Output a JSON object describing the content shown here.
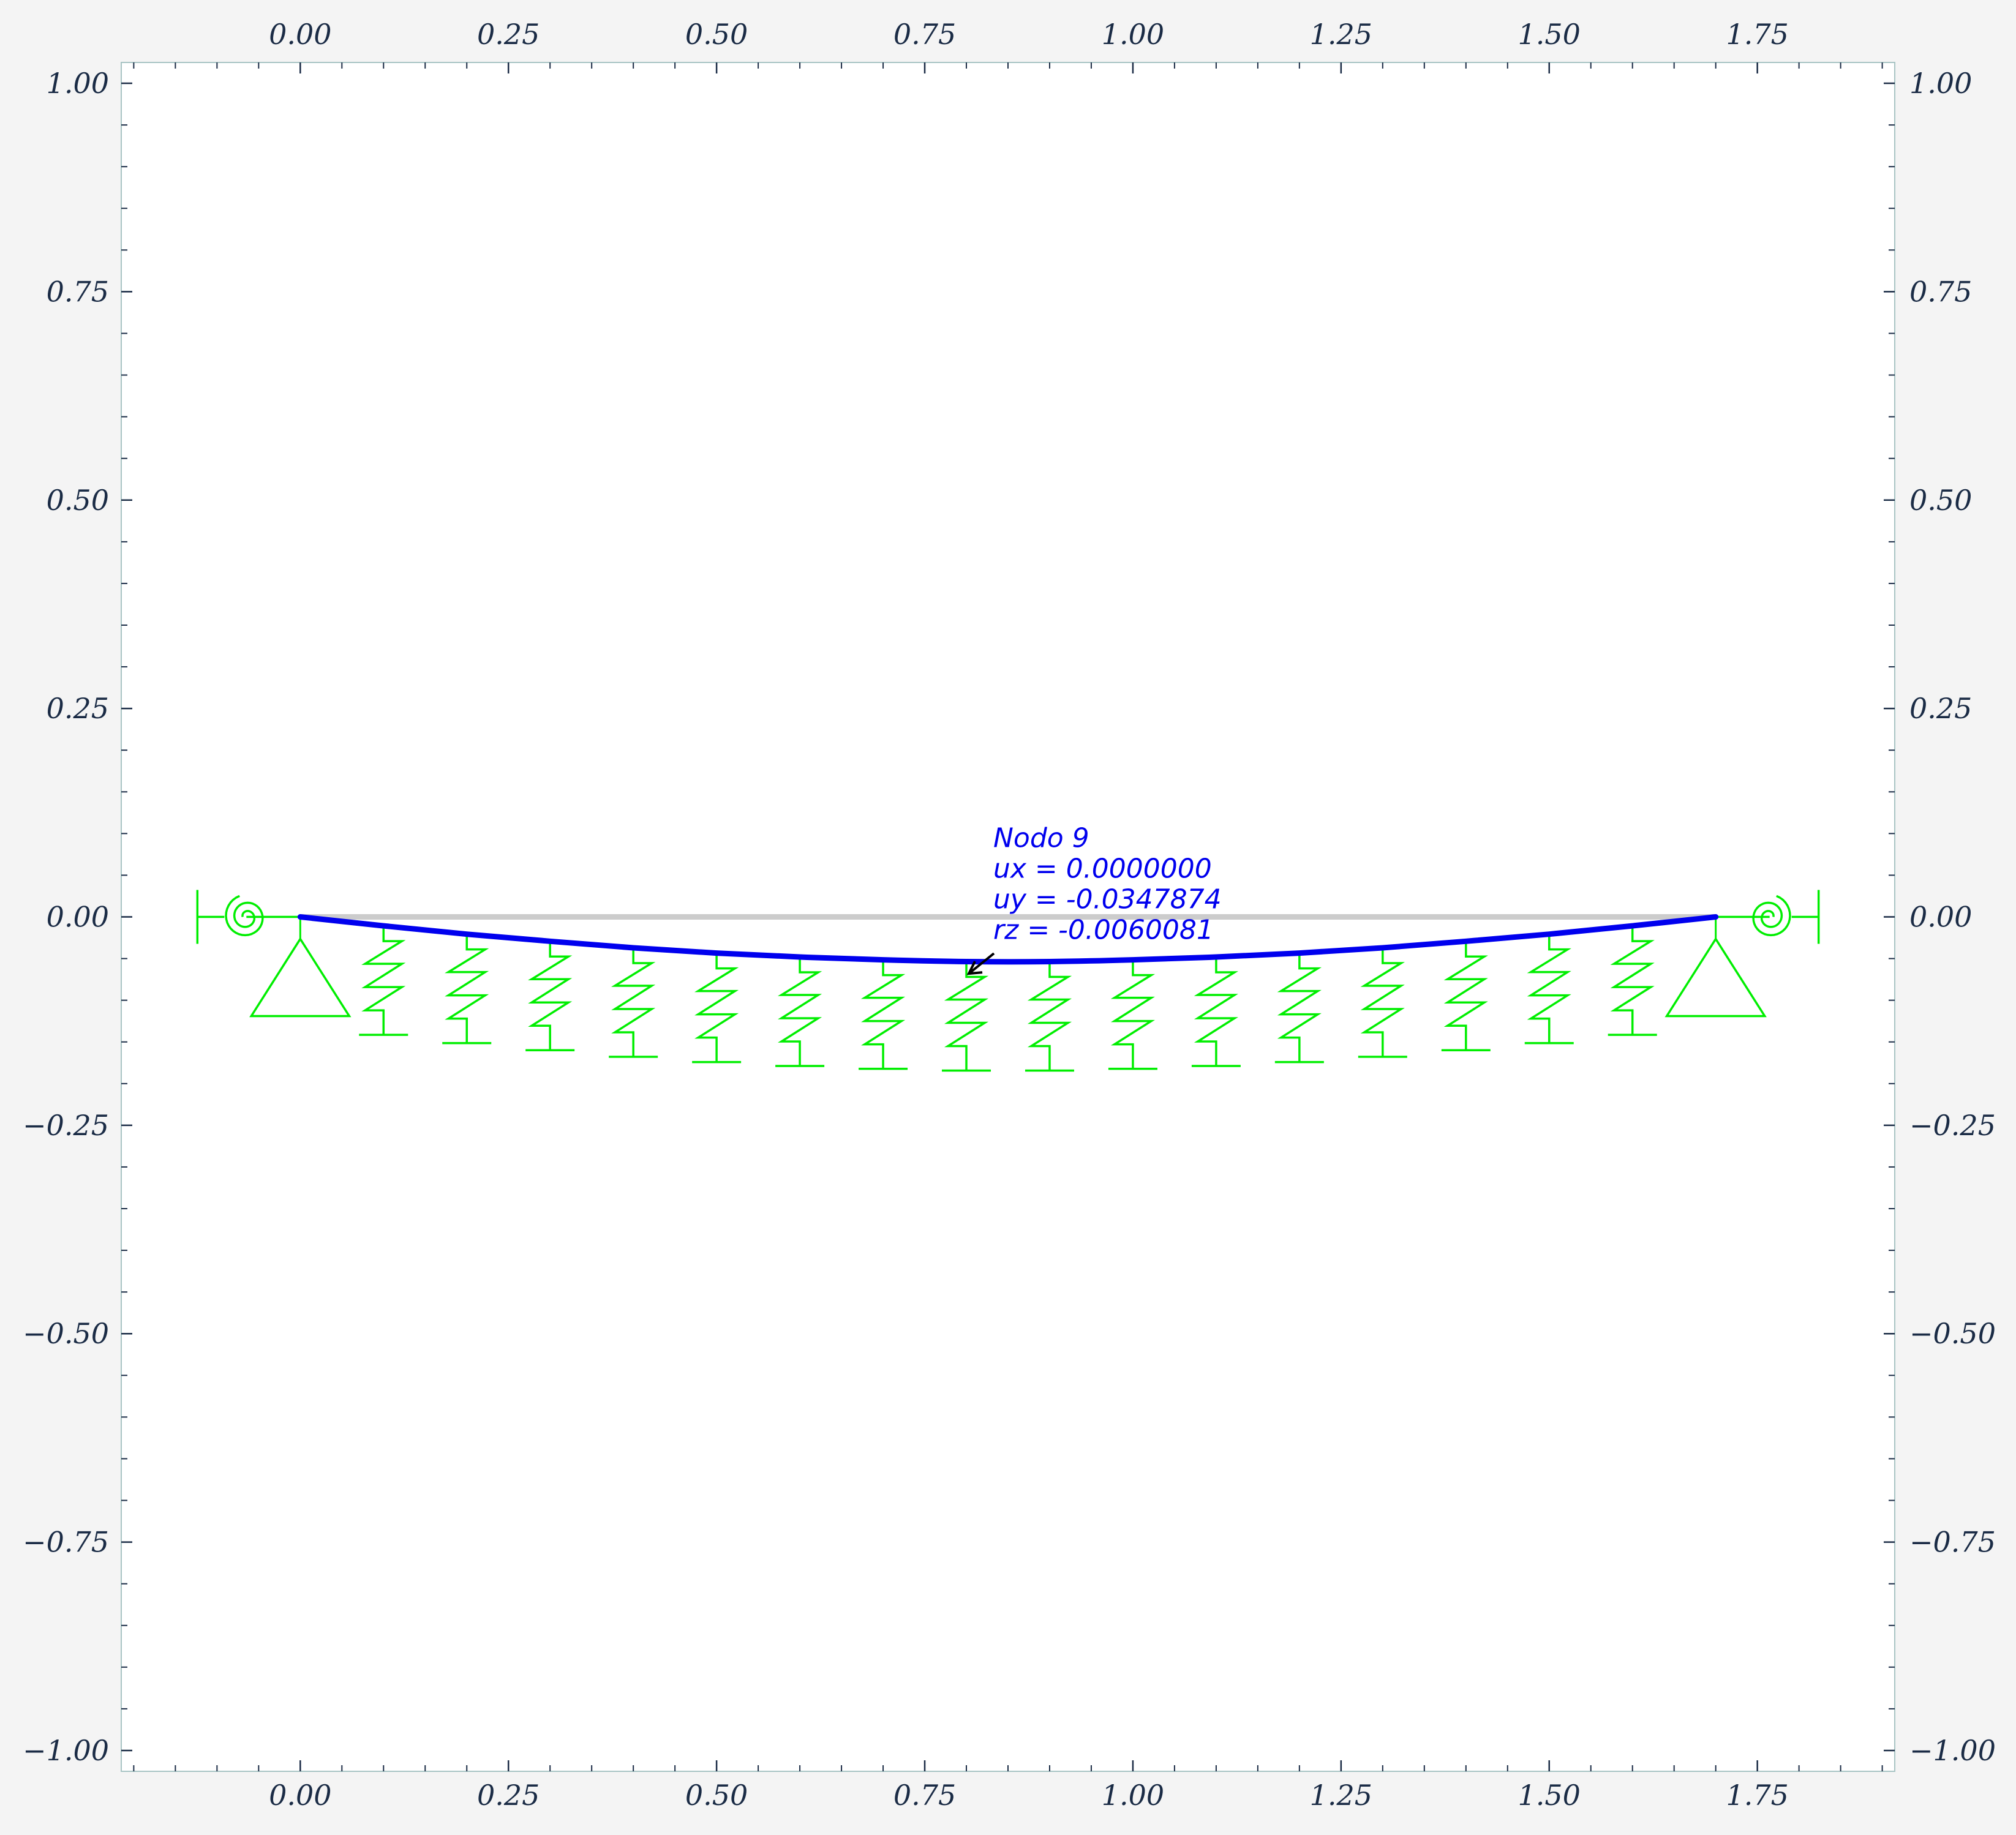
{
  "chart_data": {
    "type": "line",
    "title": "",
    "xlabel": "",
    "ylabel": "",
    "xlim": [
      -0.215,
      1.915
    ],
    "ylim": [
      -1.025,
      1.025
    ],
    "grid": false,
    "x_ticks": [
      "0.00",
      "0.25",
      "0.50",
      "0.75",
      "1.00",
      "1.25",
      "1.50",
      "1.75"
    ],
    "y_ticks": [
      "1.00",
      "0.75",
      "0.50",
      "0.25",
      "0.00",
      "−0.25",
      "−0.50",
      "−0.75",
      "−1.00"
    ],
    "x_tick_values": [
      0,
      0.25,
      0.5,
      0.75,
      1.0,
      1.25,
      1.5,
      1.75
    ],
    "y_tick_values": [
      1.0,
      0.75,
      0.5,
      0.25,
      0,
      -0.25,
      -0.5,
      -0.75,
      -1.0
    ],
    "series": [
      {
        "role": "undeformed",
        "color": "#cccccc",
        "x": [
          0,
          1.7
        ],
        "y": [
          0,
          0
        ]
      },
      {
        "role": "deformed",
        "color": "#0000ee",
        "x": [
          0,
          0.1,
          0.2,
          0.3,
          0.4,
          0.5,
          0.6,
          0.7,
          0.8,
          0.9,
          1.0,
          1.1,
          1.2,
          1.3,
          1.4,
          1.5,
          1.6,
          1.7
        ],
        "y": [
          0,
          -0.0107,
          -0.0207,
          -0.0292,
          -0.0371,
          -0.0434,
          -0.0481,
          -0.0515,
          -0.0536,
          -0.0536,
          -0.0515,
          -0.0481,
          -0.0434,
          -0.0371,
          -0.0292,
          -0.0207,
          -0.0107,
          0
        ]
      }
    ],
    "supports": {
      "color": "#00ee00",
      "pins": [
        0,
        1.7
      ],
      "rotational_springs": [
        0,
        1.7
      ],
      "spring_nodes": [
        0.1,
        0.2,
        0.3,
        0.4,
        0.5,
        0.6,
        0.7,
        0.8,
        0.9,
        1.0,
        1.1,
        1.2,
        1.3,
        1.4,
        1.5,
        1.6
      ]
    },
    "annotation": {
      "color": "#0000ee",
      "node_x": 0.8,
      "node_y": -0.0695,
      "lines": [
        "Nodo 9",
        "ux = 0.0000000",
        "uy = -0.0347874",
        "rz = -0.0060081"
      ]
    }
  }
}
